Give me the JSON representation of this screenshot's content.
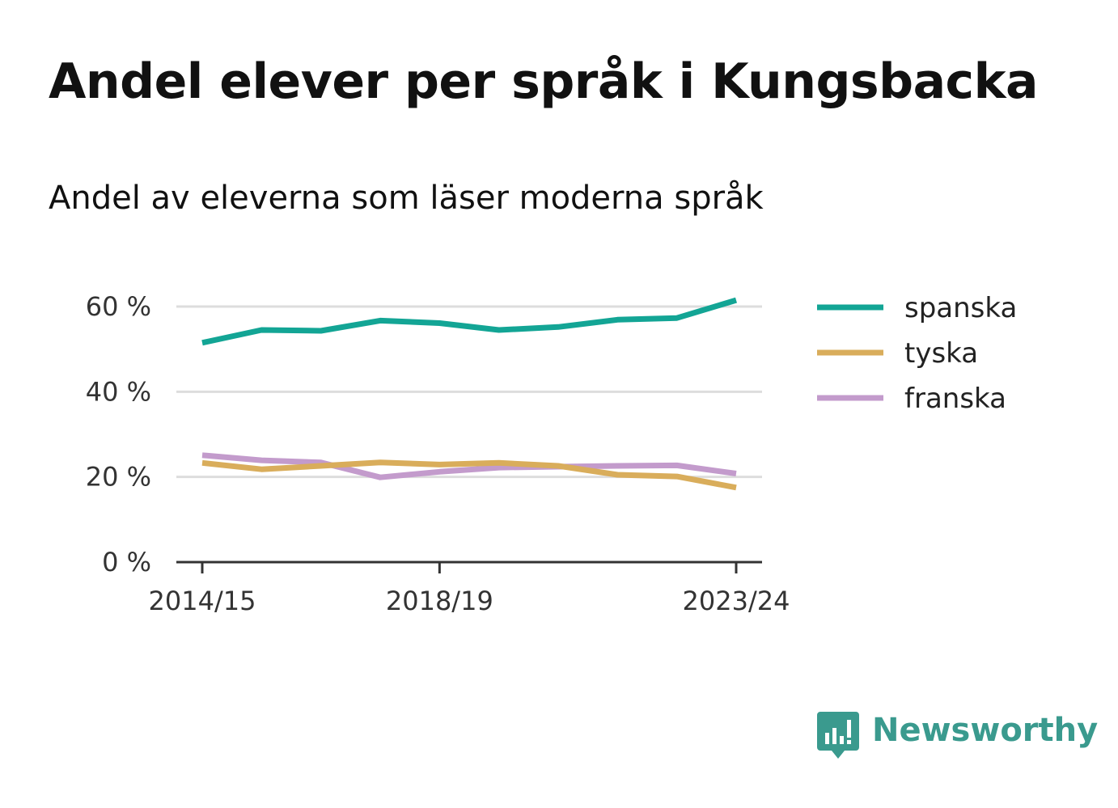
{
  "title": "Andel elever per språk i Kungsbacka",
  "subtitle": "Andel av eleverna som läser moderna språk",
  "branding": {
    "name": "Newsworthy",
    "color": "#3a9a8e",
    "icon": "chart-speech-bubble-icon"
  },
  "chart_data": {
    "type": "line",
    "x": [
      "2014/15",
      "2015/16",
      "2016/17",
      "2017/18",
      "2018/19",
      "2019/20",
      "2020/21",
      "2021/22",
      "2022/23",
      "2023/24"
    ],
    "x_tick_labels": [
      "2014/15",
      "2018/19",
      "2023/24"
    ],
    "x_tick_indices": [
      0,
      4,
      9
    ],
    "y_ticks": [
      0,
      20,
      40,
      60
    ],
    "y_tick_labels": [
      "0 %",
      "20 %",
      "40 %",
      "60 %"
    ],
    "ylim": [
      0,
      60
    ],
    "grid": true,
    "legend_position": "right",
    "series": [
      {
        "name": "spanska",
        "color": "#13a595",
        "values": [
          51.5,
          54.5,
          54.3,
          56.7,
          56.1,
          54.5,
          55.2,
          56.9,
          57.3,
          61.5
        ]
      },
      {
        "name": "tyska",
        "color": "#d9ad5b",
        "values": [
          23.3,
          21.8,
          22.6,
          23.4,
          22.9,
          23.3,
          22.6,
          20.5,
          20.1,
          17.5
        ]
      },
      {
        "name": "franska",
        "color": "#c39bcc",
        "values": [
          25.1,
          23.9,
          23.4,
          19.9,
          21.2,
          22.2,
          22.4,
          22.6,
          22.7,
          20.8
        ]
      }
    ]
  }
}
